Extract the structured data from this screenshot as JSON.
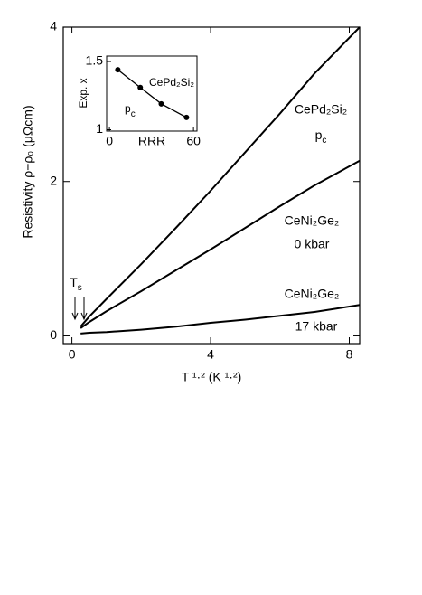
{
  "chart_data": [
    {
      "type": "line",
      "x_label": "T ¹·² (K ¹·²)",
      "y_label": "Resistivity ρ−ρ₀ (μΩcm)",
      "xlim": [
        -0.25,
        8.3
      ],
      "ylim": [
        -0.1,
        4
      ],
      "xticks": [
        0,
        4,
        8
      ],
      "yticks": [
        0,
        2,
        4
      ],
      "x": [
        0.25,
        0.5,
        1,
        2,
        3,
        4,
        5,
        6,
        7,
        8.3
      ],
      "series": [
        {
          "name": "CePd₂Si₂",
          "pressure": {
            "text": "p",
            "sub": "c"
          },
          "color": "#000000",
          "values": [
            0.12,
            0.25,
            0.48,
            0.93,
            1.4,
            1.88,
            2.38,
            2.88,
            3.4,
            4.0
          ]
        },
        {
          "name": "CeNi₂Ge₂",
          "pressure": "0 kbar",
          "color": "#000000",
          "values": [
            0.1,
            0.18,
            0.32,
            0.58,
            0.85,
            1.12,
            1.4,
            1.68,
            1.95,
            2.27
          ]
        },
        {
          "name": "CeNi₂Ge₂",
          "pressure": "17 kbar",
          "color": "#000000",
          "values": [
            0.03,
            0.04,
            0.05,
            0.08,
            0.12,
            0.17,
            0.21,
            0.26,
            0.31,
            0.4
          ]
        }
      ],
      "annotation": {
        "text": "T",
        "sub": "s"
      }
    },
    {
      "type": "scatter",
      "x_label": "RRR",
      "y_label": "Exp. x",
      "xlim": [
        -2,
        62.5
      ],
      "ylim": [
        0.99,
        1.54
      ],
      "xticks": [
        0,
        60
      ],
      "yticks": [
        1,
        1.5
      ],
      "x": [
        6,
        22,
        37,
        55
      ],
      "values": [
        1.44,
        1.31,
        1.19,
        1.09
      ],
      "compound": "CePd₂Si₂",
      "condition": {
        "text": "p",
        "sub": "c"
      },
      "color": "#000000"
    }
  ]
}
